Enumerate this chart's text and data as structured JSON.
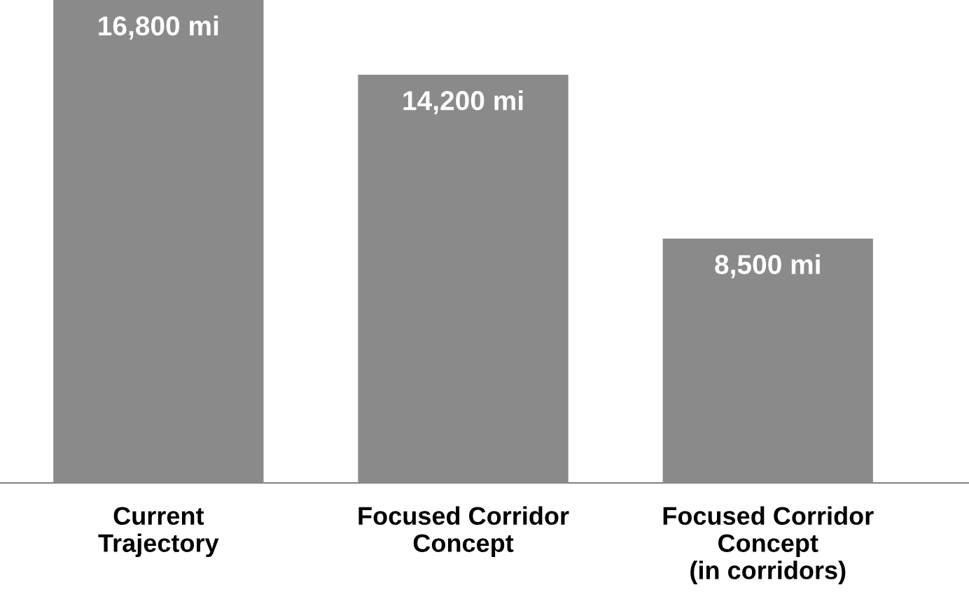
{
  "chart_data": {
    "type": "bar",
    "categories": [
      "Current\nTrajectory",
      "Focused Corridor\nConcept",
      "Focused Corridor\nConcept\n(in corridors)"
    ],
    "values": [
      16800,
      14200,
      8500
    ],
    "value_labels": [
      "16,800 mi",
      "14,200 mi",
      "8,500 mi"
    ],
    "color": "#8a8a8a",
    "grid": false,
    "legend": false
  }
}
